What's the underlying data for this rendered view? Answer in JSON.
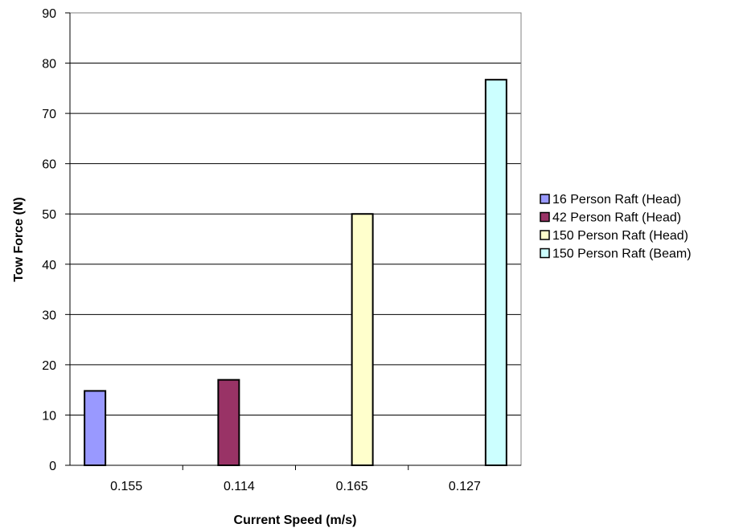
{
  "chart_data": {
    "type": "bar",
    "title": "",
    "xlabel": "Current Speed (m/s)",
    "ylabel": "Tow Force (N)",
    "categories": [
      "0.155",
      "0.114",
      "0.165",
      "0.127"
    ],
    "ylim": [
      0,
      90
    ],
    "yticks": [
      "0",
      "10",
      "20",
      "30",
      "40",
      "50",
      "60",
      "70",
      "80",
      "90"
    ],
    "grid": true,
    "legend_position": "right",
    "series": [
      {
        "name": "16 Person Raft (Head)",
        "color": "#9999ff",
        "values": [
          14.8,
          null,
          null,
          null
        ]
      },
      {
        "name": "42 Person Raft (Head)",
        "color": "#993366",
        "values": [
          null,
          17.0,
          null,
          null
        ]
      },
      {
        "name": "150 Person Raft (Head)",
        "color": "#ffffcc",
        "values": [
          null,
          null,
          50.0,
          null
        ]
      },
      {
        "name": "150 Person Raft (Beam)",
        "color": "#ccffff",
        "values": [
          null,
          null,
          null,
          76.7
        ]
      }
    ]
  }
}
